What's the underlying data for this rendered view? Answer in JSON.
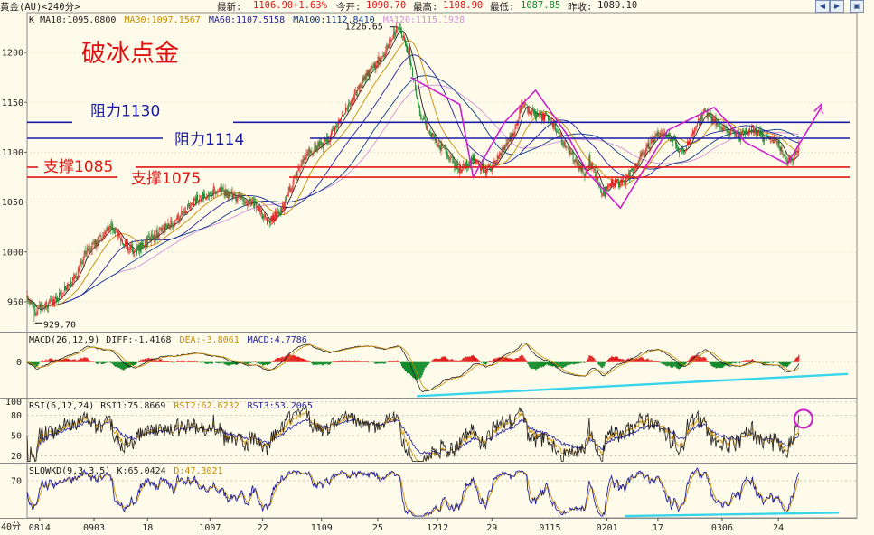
{
  "header": {
    "symbol": "黄金(AU)<240分>",
    "latest_label": "最新:",
    "latest": "1106.90",
    "change": "+1.63%",
    "open_label": "今开:",
    "open": "1090.70",
    "high_label": "最高:",
    "high": "1108.90",
    "low_label": "最低:",
    "low": "1087.85",
    "prev_close_label": "昨收:",
    "prev_close": "1089.10"
  },
  "colors": {
    "up": "#e32020",
    "down": "#118a2a",
    "resistance": "#1a1aa8",
    "support": "#e01818",
    "pattern": "#cc20cc",
    "trend": "#38d4ec",
    "title": "#e01010",
    "ma10": "#222222",
    "ma30": "#c78a00",
    "ma60": "#2020a0",
    "ma100": "#0a3b8a",
    "ma120": "#d090d8"
  },
  "chart_data": [
    {
      "type": "candlestick",
      "title": "破冰点金",
      "indicator_line": {
        "label": "K",
        "items": [
          {
            "name": "MA10",
            "value": "1095.0800",
            "color": "ma10"
          },
          {
            "name": "MA30",
            "value": "1097.1567",
            "color": "ma30"
          },
          {
            "name": "MA60",
            "value": "1107.5158",
            "color": "ma60"
          },
          {
            "name": "MA100",
            "value": "1112.8410",
            "color": "ma100"
          },
          {
            "name": "MA120",
            "value": "1115.1928",
            "color": "ma120"
          }
        ]
      },
      "yticks": [
        950,
        1000,
        1050,
        1100,
        1150,
        1200
      ],
      "ylim": [
        920,
        1240
      ],
      "price_path": [
        [
          0,
          955
        ],
        [
          8,
          940
        ],
        [
          18,
          945
        ],
        [
          30,
          950
        ],
        [
          40,
          962
        ],
        [
          55,
          975
        ],
        [
          65,
          1000
        ],
        [
          80,
          1012
        ],
        [
          95,
          1025
        ],
        [
          110,
          1008
        ],
        [
          120,
          1000
        ],
        [
          140,
          1015
        ],
        [
          165,
          1030
        ],
        [
          190,
          1052
        ],
        [
          210,
          1063
        ],
        [
          235,
          1055
        ],
        [
          255,
          1048
        ],
        [
          270,
          1028
        ],
        [
          285,
          1042
        ],
        [
          300,
          1075
        ],
        [
          315,
          1100
        ],
        [
          335,
          1110
        ],
        [
          350,
          1130
        ],
        [
          365,
          1155
        ],
        [
          385,
          1182
        ],
        [
          400,
          1198
        ],
        [
          415,
          1226.65
        ],
        [
          428,
          1200
        ],
        [
          440,
          1140
        ],
        [
          455,
          1115
        ],
        [
          470,
          1100
        ],
        [
          485,
          1082
        ],
        [
          500,
          1093
        ],
        [
          515,
          1080
        ],
        [
          530,
          1098
        ],
        [
          545,
          1120
        ],
        [
          555,
          1148
        ],
        [
          570,
          1136
        ],
        [
          585,
          1135
        ],
        [
          598,
          1113
        ],
        [
          615,
          1092
        ],
        [
          625,
          1078
        ],
        [
          630,
          1092
        ],
        [
          645,
          1058
        ],
        [
          655,
          1068
        ],
        [
          670,
          1070
        ],
        [
          690,
          1098
        ],
        [
          700,
          1112
        ],
        [
          710,
          1120
        ],
        [
          725,
          1112
        ],
        [
          735,
          1098
        ],
        [
          750,
          1128
        ],
        [
          760,
          1140
        ],
        [
          770,
          1132
        ],
        [
          785,
          1120
        ],
        [
          800,
          1115
        ],
        [
          810,
          1125
        ],
        [
          825,
          1115
        ],
        [
          840,
          1110
        ],
        [
          850,
          1094
        ],
        [
          858,
          1092
        ],
        [
          865,
          1106.9
        ]
      ],
      "annotations": {
        "high": {
          "label": "1226.65",
          "value": 1226.65,
          "bar": 415
        },
        "low": {
          "label": "929.70",
          "value": 929.7,
          "bar": 8
        }
      },
      "levels": [
        {
          "name": "resistance-1130",
          "label": "阻力1130",
          "value": 1130,
          "color": "resistance"
        },
        {
          "name": "resistance-1114",
          "label": "阻力1114",
          "value": 1114,
          "color": "resistance"
        },
        {
          "name": "support-1085",
          "label": "支撑1085",
          "value": 1085,
          "color": "support"
        },
        {
          "name": "support-1075",
          "label": "支撑1075",
          "value": 1075,
          "color": "support"
        }
      ],
      "pattern_path": [
        [
          430,
          1175
        ],
        [
          485,
          1148
        ],
        [
          500,
          1075
        ],
        [
          535,
          1130
        ],
        [
          570,
          1162
        ],
        [
          605,
          1118
        ],
        [
          628,
          1080
        ],
        [
          665,
          1044
        ],
        [
          718,
          1122
        ],
        [
          770,
          1145
        ],
        [
          805,
          1110
        ],
        [
          852,
          1088
        ],
        [
          890,
          1145
        ]
      ],
      "projection_arrow": {
        "from": [
          870,
          1095
        ],
        "to": [
          890,
          1148
        ]
      },
      "xticks": [
        {
          "label": "0814",
          "bar": 14
        },
        {
          "label": "0903",
          "bar": 75
        },
        {
          "label": "18",
          "bar": 135
        },
        {
          "label": "1007",
          "bar": 205
        },
        {
          "label": "22",
          "bar": 264
        },
        {
          "label": "1109",
          "bar": 330
        },
        {
          "label": "25",
          "bar": 393
        },
        {
          "label": "1212",
          "bar": 460
        },
        {
          "label": "29",
          "bar": 521
        },
        {
          "label": "0115",
          "bar": 586
        },
        {
          "label": "0201",
          "bar": 650
        },
        {
          "label": "17",
          "bar": 707
        },
        {
          "label": "0306",
          "bar": 779
        },
        {
          "label": "24",
          "bar": 842
        }
      ],
      "xlabel_left": "40分"
    },
    {
      "type": "bar",
      "indicator_line": {
        "label": "MACD(26,12,9)",
        "items": [
          {
            "name": "DIFF",
            "value": "-1.4168",
            "color": "ma10"
          },
          {
            "name": "DEA",
            "value": "-3.8061",
            "color": "ma30"
          },
          {
            "name": "MACD",
            "value": "4.7786",
            "color": "ma60"
          }
        ]
      },
      "yticks": [
        0
      ],
      "ylim": [
        -12,
        10
      ],
      "trend_line": {
        "from": [
          437,
          -11.5
        ],
        "to": [
          920,
          -4
        ]
      }
    },
    {
      "type": "line",
      "indicator_line": {
        "label": "RSI(6,12,24)",
        "items": [
          {
            "name": "RSI1",
            "value": "75.8669",
            "color": "ma10"
          },
          {
            "name": "RSI2",
            "value": "62.6232",
            "color": "ma30"
          },
          {
            "name": "RSI3",
            "value": "53.2065",
            "color": "ma60"
          }
        ]
      },
      "yticks": [
        20,
        50,
        80,
        100
      ],
      "ylim": [
        10,
        105
      ],
      "marker": {
        "bar": 862,
        "value": 75
      }
    },
    {
      "type": "line",
      "indicator_line": {
        "label": "SLOWKD(9,3,3,5)",
        "items": [
          {
            "name": "K",
            "value": "65.0424",
            "color": "ma10"
          },
          {
            "name": "D",
            "value": "47.3021",
            "color": "ma30"
          }
        ]
      },
      "yticks": [
        70
      ],
      "ylim": [
        5,
        100
      ],
      "trend_line": {
        "from": [
          670,
          8
        ],
        "to": [
          910,
          14
        ]
      }
    }
  ]
}
